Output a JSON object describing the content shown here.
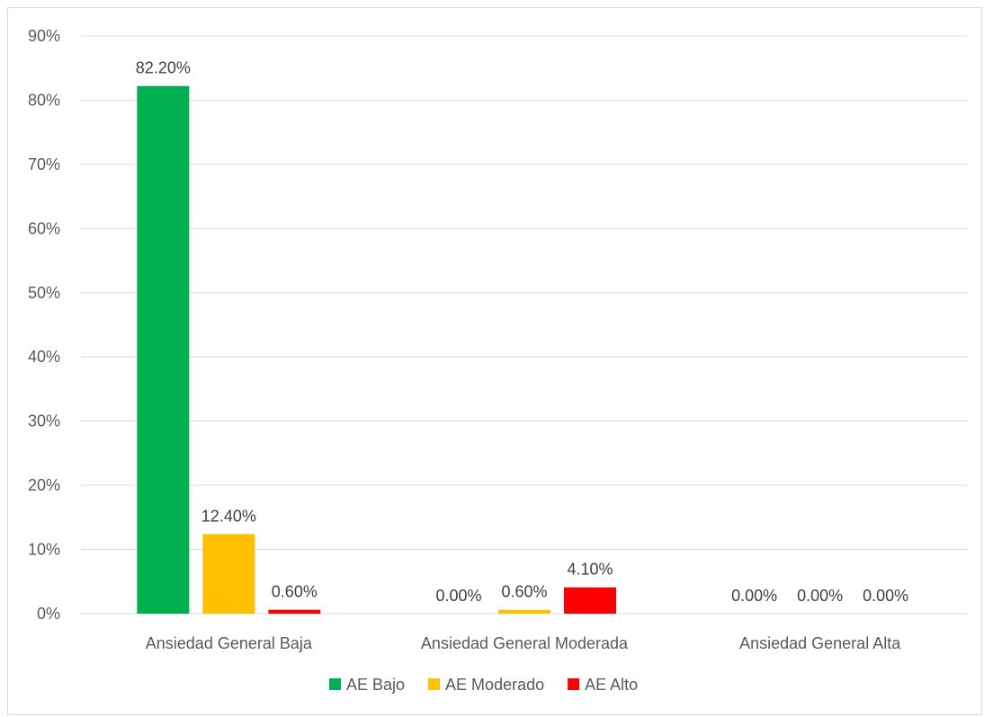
{
  "chart_data": {
    "type": "bar",
    "title": "",
    "xlabel": "",
    "ylabel": "",
    "categories": [
      "Ansiedad General Baja",
      "Ansiedad General Moderada",
      "Ansiedad General Alta"
    ],
    "series": [
      {
        "name": "AE Bajo",
        "color": "#00b050",
        "values": [
          82.2,
          0.0,
          0.0
        ],
        "labels": [
          "82.20%",
          "0.00%",
          "0.00%"
        ]
      },
      {
        "name": "AE Moderado",
        "color": "#ffc000",
        "values": [
          12.4,
          0.6,
          0.0
        ],
        "labels": [
          "12.40%",
          "0.60%",
          "0.00%"
        ]
      },
      {
        "name": "AE Alto",
        "color": "#ff0000",
        "values": [
          0.6,
          4.1,
          0.0
        ],
        "labels": [
          "0.60%",
          "4.10%",
          "0.00%"
        ]
      }
    ],
    "ylim": [
      0,
      90
    ],
    "yticks": [
      "0%",
      "10%",
      "20%",
      "30%",
      "40%",
      "50%",
      "60%",
      "70%",
      "80%",
      "90%"
    ],
    "grid": true,
    "legend_position": "bottom"
  }
}
